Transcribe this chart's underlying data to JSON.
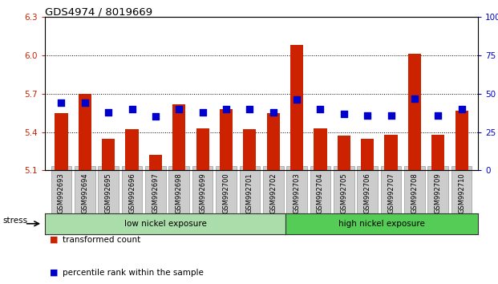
{
  "title": "GDS4974 / 8019669",
  "samples": [
    "GSM992693",
    "GSM992694",
    "GSM992695",
    "GSM992696",
    "GSM992697",
    "GSM992698",
    "GSM992699",
    "GSM992700",
    "GSM992701",
    "GSM992702",
    "GSM992703",
    "GSM992704",
    "GSM992705",
    "GSM992706",
    "GSM992707",
    "GSM992708",
    "GSM992709",
    "GSM992710"
  ],
  "bar_values": [
    5.55,
    5.7,
    5.35,
    5.42,
    5.22,
    5.62,
    5.43,
    5.58,
    5.42,
    5.55,
    6.08,
    5.43,
    5.37,
    5.35,
    5.38,
    6.01,
    5.38,
    5.57
  ],
  "blue_values": [
    44,
    44,
    38,
    40,
    35,
    40,
    38,
    40,
    40,
    38,
    46,
    40,
    37,
    36,
    36,
    47,
    36,
    40
  ],
  "ylim_left": [
    5.1,
    6.3
  ],
  "ylim_right": [
    0,
    100
  ],
  "yticks_left": [
    5.1,
    5.4,
    5.7,
    6.0,
    6.3
  ],
  "yticks_right": [
    0,
    25,
    50,
    75,
    100
  ],
  "bar_color": "#cc2200",
  "blue_color": "#0000cc",
  "bar_bottom": 5.1,
  "group_low_label": "low nickel exposure",
  "group_high_label": "high nickel exposure",
  "stress_label": "stress",
  "legend_red_label": "transformed count",
  "legend_blue_label": "percentile rank within the sample",
  "grid_yticks": [
    5.4,
    5.7,
    6.0
  ],
  "tick_label_color_left": "#cc2200",
  "tick_label_color_right": "#0000cc",
  "group_bg_low": "#aaddaa",
  "group_bg_high": "#55cc55",
  "n_low": 10,
  "n_high": 8
}
